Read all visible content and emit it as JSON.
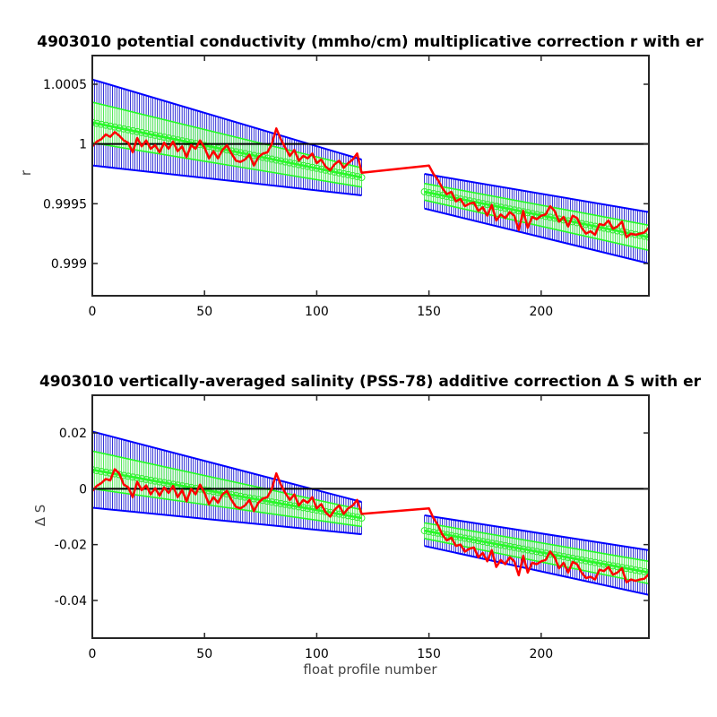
{
  "chart_data": [
    {
      "type": "line",
      "title": "4903010 potential conductivity (mmho/cm) multiplicative correction r with er",
      "xlabel": "",
      "ylabel": "r",
      "xlim": [
        0,
        248
      ],
      "ylim": [
        0.99873,
        1.00074
      ],
      "xticks": [
        0,
        50,
        100,
        150,
        200
      ],
      "xtick_labels": [
        "0",
        "50",
        "100",
        "150",
        "200"
      ],
      "yticks": [
        0.999,
        0.9995,
        1,
        1.0005
      ],
      "ytick_labels": [
        "0.999",
        "0.9995",
        "1",
        "1.0005"
      ],
      "grid": false,
      "legend": "none",
      "reference_line": 1,
      "fit_segments": [
        {
          "x": [
            0,
            120
          ],
          "center": [
            1.00018,
            0.99972
          ],
          "err_upper": [
            1.00054,
            0.99987
          ],
          "err_lower": [
            0.99982,
            0.99957
          ],
          "inner_upper": [
            1.00035,
            0.9998
          ],
          "inner_lower": [
            1.00001,
            0.99964
          ]
        },
        {
          "x": [
            148,
            248
          ],
          "center": [
            0.9996,
            0.99922
          ],
          "err_upper": [
            0.99975,
            0.99943
          ],
          "err_lower": [
            0.99946,
            0.999
          ],
          "inner_upper": [
            0.99967,
            0.99932
          ],
          "inner_lower": [
            0.99953,
            0.99911
          ]
        }
      ],
      "series": [
        {
          "color": "#ff0000",
          "x": [
            0,
            2,
            4,
            6,
            8,
            10,
            12,
            14,
            16,
            18,
            20,
            22,
            24,
            26,
            28,
            30,
            32,
            34,
            36,
            38,
            40,
            42,
            44,
            46,
            48,
            50,
            52,
            54,
            56,
            58,
            60,
            62,
            64,
            66,
            68,
            70,
            72,
            74,
            76,
            78,
            80,
            82,
            84,
            86,
            88,
            90,
            92,
            94,
            96,
            98,
            100,
            102,
            104,
            106,
            108,
            110,
            112,
            114,
            116,
            118,
            120,
            150,
            152,
            154,
            156,
            158,
            160,
            162,
            164,
            166,
            168,
            170,
            172,
            174,
            176,
            178,
            180,
            182,
            184,
            186,
            188,
            190,
            192,
            194,
            196,
            198,
            200,
            202,
            204,
            206,
            208,
            210,
            212,
            214,
            216,
            218,
            220,
            222,
            224,
            226,
            228,
            230,
            232,
            234,
            236,
            238,
            240,
            242,
            244,
            246,
            248
          ],
          "y": [
            0.99998,
            1.00002,
            1.00004,
            1.00008,
            1.00006,
            1.0001,
            1.00007,
            1.00003,
            1.00001,
            0.99993,
            1.00005,
            0.99998,
            1.00003,
            0.99996,
            0.99999,
            0.99993,
            1.00001,
            0.99996,
            1.00002,
            0.99994,
            0.99998,
            0.99989,
            0.99999,
            0.99996,
            1.00003,
            0.99997,
            0.99988,
            0.99994,
            0.99988,
            0.99995,
            0.99999,
            0.99992,
            0.99986,
            0.99985,
            0.99987,
            0.99991,
            0.99982,
            0.99989,
            0.99992,
            0.99993,
            1.0,
            1.00013,
            1.00004,
            0.99997,
            0.9999,
            0.99995,
            0.99986,
            0.9999,
            0.99988,
            0.99992,
            0.99984,
            0.99987,
            0.99981,
            0.99978,
            0.99983,
            0.99986,
            0.9998,
            0.99984,
            0.99987,
            0.99992,
            0.99976,
            0.99982,
            0.99975,
            0.9997,
            0.99963,
            0.99958,
            0.9996,
            0.99952,
            0.99954,
            0.99948,
            0.9995,
            0.99951,
            0.99944,
            0.99947,
            0.9994,
            0.99949,
            0.99936,
            0.99941,
            0.99938,
            0.99943,
            0.9994,
            0.99928,
            0.99944,
            0.9993,
            0.99939,
            0.99937,
            0.9994,
            0.99941,
            0.99948,
            0.99944,
            0.99935,
            0.99939,
            0.99931,
            0.9994,
            0.99938,
            0.9993,
            0.99925,
            0.99927,
            0.99924,
            0.99933,
            0.99932,
            0.99936,
            0.99929,
            0.99931,
            0.99935,
            0.99922,
            0.99925,
            0.99924,
            0.99925,
            0.99926,
            0.9993
          ]
        }
      ]
    },
    {
      "type": "line",
      "title": "4903010 vertically-averaged salinity (PSS-78) additive correction Δ S with er",
      "xlabel": "float profile number",
      "ylabel": "Δ S",
      "xlim": [
        0,
        248
      ],
      "ylim": [
        -0.0535,
        0.0335
      ],
      "xticks": [
        0,
        50,
        100,
        150,
        200
      ],
      "xtick_labels": [
        "0",
        "50",
        "100",
        "150",
        "200"
      ],
      "yticks": [
        -0.04,
        -0.02,
        0,
        0.02
      ],
      "ytick_labels": [
        "-0.04",
        "-0.02",
        "0",
        "0.02"
      ],
      "grid": false,
      "legend": "none",
      "reference_line": 0,
      "fit_segments": [
        {
          "x": [
            0,
            120
          ],
          "center": [
            0.0068,
            -0.0105
          ],
          "err_upper": [
            0.0205,
            -0.0047
          ],
          "err_lower": [
            -0.0068,
            -0.0163
          ],
          "inner_upper": [
            0.0135,
            -0.0075
          ],
          "inner_lower": [
            0.0,
            -0.0135
          ]
        },
        {
          "x": [
            148,
            248
          ],
          "center": [
            -0.015,
            -0.03
          ],
          "err_upper": [
            -0.0095,
            -0.022
          ],
          "err_lower": [
            -0.0205,
            -0.038
          ],
          "inner_upper": [
            -0.0122,
            -0.026
          ],
          "inner_lower": [
            -0.0178,
            -0.034
          ]
        }
      ],
      "series": [
        {
          "color": "#ff0000",
          "x": [
            0,
            2,
            4,
            6,
            8,
            10,
            12,
            14,
            16,
            18,
            20,
            22,
            24,
            26,
            28,
            30,
            32,
            34,
            36,
            38,
            40,
            42,
            44,
            46,
            48,
            50,
            52,
            54,
            56,
            58,
            60,
            62,
            64,
            66,
            68,
            70,
            72,
            74,
            76,
            78,
            80,
            82,
            84,
            86,
            88,
            90,
            92,
            94,
            96,
            98,
            100,
            102,
            104,
            106,
            108,
            110,
            112,
            114,
            116,
            118,
            120,
            150,
            152,
            154,
            156,
            158,
            160,
            162,
            164,
            166,
            168,
            170,
            172,
            174,
            176,
            178,
            180,
            182,
            184,
            186,
            188,
            190,
            192,
            194,
            196,
            198,
            200,
            202,
            204,
            206,
            208,
            210,
            212,
            214,
            216,
            218,
            220,
            222,
            224,
            226,
            228,
            230,
            232,
            234,
            236,
            238,
            240,
            242,
            244,
            246,
            248
          ],
          "y": [
            -0.0008,
            0.001,
            0.002,
            0.0035,
            0.003,
            0.007,
            0.0055,
            0.0015,
            0.0005,
            -0.003,
            0.0025,
            -0.0005,
            0.0012,
            -0.002,
            0.0002,
            -0.0025,
            0.0005,
            -0.0015,
            0.001,
            -0.003,
            -0.0005,
            -0.0045,
            0.0,
            -0.002,
            0.0015,
            -0.0015,
            -0.0055,
            -0.003,
            -0.005,
            -0.002,
            -0.0008,
            -0.004,
            -0.0065,
            -0.007,
            -0.006,
            -0.004,
            -0.008,
            -0.005,
            -0.0035,
            -0.003,
            0.0,
            0.0055,
            0.0015,
            -0.0015,
            -0.004,
            -0.002,
            -0.006,
            -0.004,
            -0.005,
            -0.003,
            -0.007,
            -0.0055,
            -0.0085,
            -0.01,
            -0.0075,
            -0.006,
            -0.009,
            -0.007,
            -0.006,
            -0.004,
            -0.009,
            -0.007,
            -0.0105,
            -0.013,
            -0.0165,
            -0.0185,
            -0.0175,
            -0.0205,
            -0.02,
            -0.0225,
            -0.0215,
            -0.021,
            -0.0245,
            -0.023,
            -0.026,
            -0.022,
            -0.028,
            -0.0255,
            -0.027,
            -0.0245,
            -0.026,
            -0.031,
            -0.024,
            -0.03,
            -0.0265,
            -0.027,
            -0.026,
            -0.0255,
            -0.0225,
            -0.0245,
            -0.0285,
            -0.0265,
            -0.03,
            -0.0262,
            -0.027,
            -0.03,
            -0.032,
            -0.0315,
            -0.0325,
            -0.029,
            -0.0295,
            -0.028,
            -0.0308,
            -0.03,
            -0.0285,
            -0.0335,
            -0.0325,
            -0.033,
            -0.0325,
            -0.0322,
            -0.0305
          ]
        }
      ]
    }
  ]
}
